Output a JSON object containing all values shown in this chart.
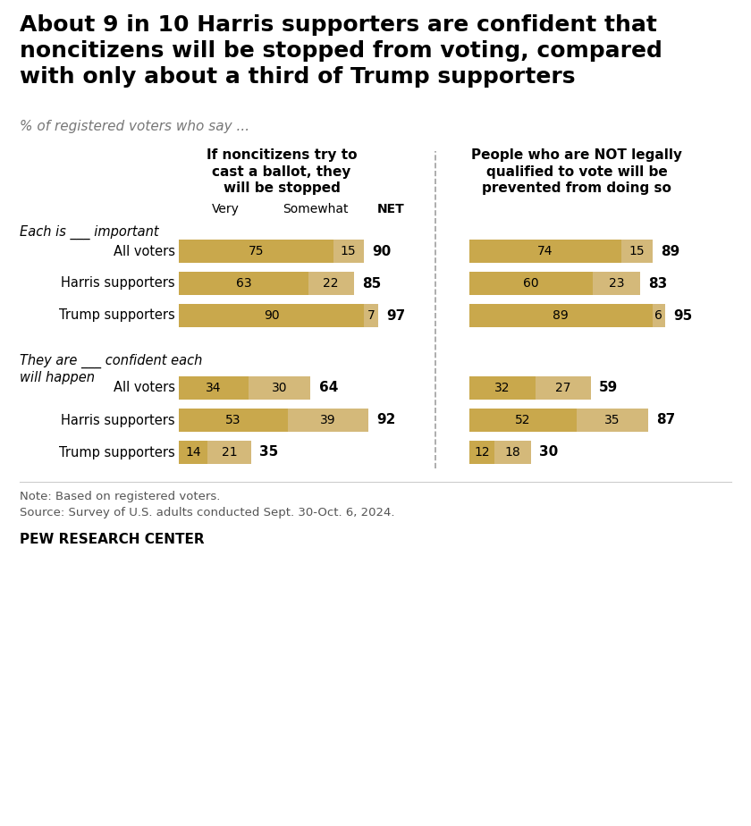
{
  "title": "About 9 in 10 Harris supporters are confident that\nnoncitizens will be stopped from voting, compared\nwith only about a third of Trump supporters",
  "subtitle": "% of registered voters who say ...",
  "col1_header": "If noncitizens try to\ncast a ballot, they\nwill be stopped",
  "col2_header": "People who are NOT legally\nqualified to vote will be\nprevented from doing so",
  "section1_label": "Each is ___ important",
  "section2_label": "They are ___ confident each\nwill happen",
  "row_labels_s1": [
    "All voters",
    "Harris supporters",
    "Trump supporters"
  ],
  "row_labels_s2": [
    "All voters",
    "Harris supporters",
    "Trump supporters"
  ],
  "col1_very": [
    75,
    63,
    90,
    34,
    53,
    14
  ],
  "col1_somewhat": [
    15,
    22,
    7,
    30,
    39,
    21
  ],
  "col1_net": [
    90,
    85,
    97,
    64,
    92,
    35
  ],
  "col2_very": [
    74,
    60,
    89,
    32,
    52,
    12
  ],
  "col2_somewhat": [
    15,
    23,
    6,
    27,
    35,
    18
  ],
  "col2_net": [
    89,
    83,
    95,
    59,
    87,
    30
  ],
  "color_very": "#C9A84C",
  "color_somewhat": "#D4B97A",
  "note": "Note: Based on registered voters.",
  "source": "Source: Survey of U.S. adults conducted Sept. 30-Oct. 6, 2024.",
  "footer": "PEW RESEARCH CENTER"
}
